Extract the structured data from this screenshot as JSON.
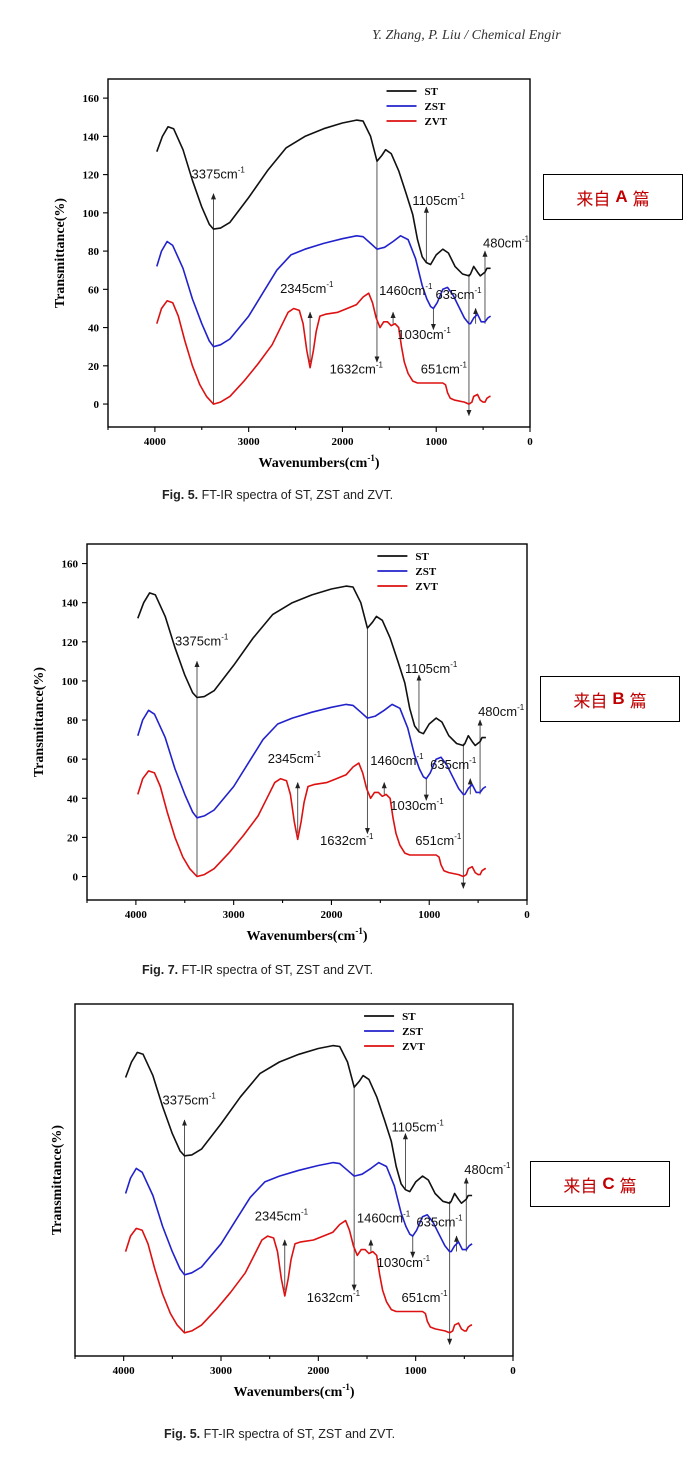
{
  "header": "Y. Zhang, P. Liu / Chemical Engir",
  "panels": [
    {
      "id": "A",
      "note": {
        "prefix": "来自",
        "letter": "A",
        "suffix": "篇"
      },
      "caption": {
        "fig": "Fig. 5.",
        "text": "FT-IR spectra of ST, ZST and ZVT."
      },
      "show_y_ticks": true
    },
    {
      "id": "B",
      "note": {
        "prefix": "来自",
        "letter": "B",
        "suffix": "篇"
      },
      "caption": {
        "fig": "Fig. 7.",
        "text": "FT-IR spectra of ST, ZST and ZVT."
      },
      "show_y_ticks": true
    },
    {
      "id": "C",
      "note": {
        "prefix": "来自",
        "letter": "C",
        "suffix": "篇"
      },
      "caption": {
        "fig": "Fig. 5.",
        "text": "FT-IR spectra of ST, ZST and ZVT."
      },
      "show_y_ticks": false
    }
  ],
  "chart_data": {
    "type": "line",
    "xlabel": "Wavenumbers(cm",
    "xlabel_sup": "-1",
    "xlabel_suffix": ")",
    "ylabel": "Transmittance(%)",
    "xlim": [
      4500,
      0
    ],
    "ylim": [
      -12,
      170
    ],
    "x_ticks": [
      4000,
      3000,
      2000,
      1000,
      0
    ],
    "y_ticks": [
      0,
      20,
      40,
      60,
      80,
      100,
      120,
      140,
      160
    ],
    "legend_position": "top-right",
    "series": [
      {
        "name": "ST",
        "color": "#111111",
        "points": [
          [
            3980,
            132
          ],
          [
            3920,
            140
          ],
          [
            3860,
            145
          ],
          [
            3800,
            144
          ],
          [
            3700,
            133
          ],
          [
            3600,
            117
          ],
          [
            3500,
            103
          ],
          [
            3420,
            94
          ],
          [
            3375,
            91.5
          ],
          [
            3300,
            92
          ],
          [
            3200,
            95
          ],
          [
            3000,
            108
          ],
          [
            2800,
            122
          ],
          [
            2600,
            134
          ],
          [
            2400,
            140
          ],
          [
            2200,
            144
          ],
          [
            2000,
            147
          ],
          [
            1850,
            148.5
          ],
          [
            1780,
            148
          ],
          [
            1700,
            140
          ],
          [
            1632,
            127
          ],
          [
            1580,
            130
          ],
          [
            1540,
            133
          ],
          [
            1480,
            131
          ],
          [
            1400,
            122
          ],
          [
            1320,
            110
          ],
          [
            1250,
            99
          ],
          [
            1200,
            86
          ],
          [
            1150,
            77
          ],
          [
            1105,
            74
          ],
          [
            1060,
            73
          ],
          [
            1000,
            78
          ],
          [
            930,
            81
          ],
          [
            870,
            79
          ],
          [
            800,
            72
          ],
          [
            720,
            68
          ],
          [
            651,
            67
          ],
          [
            635,
            68
          ],
          [
            600,
            72
          ],
          [
            560,
            69
          ],
          [
            530,
            67
          ],
          [
            480,
            69
          ],
          [
            460,
            71
          ],
          [
            420,
            71
          ]
        ]
      },
      {
        "name": "ZST",
        "color": "#2222cc",
        "points": [
          [
            3980,
            72
          ],
          [
            3930,
            80
          ],
          [
            3870,
            85
          ],
          [
            3810,
            83
          ],
          [
            3700,
            71
          ],
          [
            3600,
            55
          ],
          [
            3500,
            42
          ],
          [
            3420,
            33
          ],
          [
            3375,
            30
          ],
          [
            3300,
            31
          ],
          [
            3200,
            34
          ],
          [
            3000,
            46
          ],
          [
            2850,
            58
          ],
          [
            2700,
            70
          ],
          [
            2550,
            78
          ],
          [
            2400,
            81
          ],
          [
            2200,
            84
          ],
          [
            2000,
            86.5
          ],
          [
            1850,
            88
          ],
          [
            1780,
            87.5
          ],
          [
            1700,
            84
          ],
          [
            1632,
            81
          ],
          [
            1550,
            82
          ],
          [
            1460,
            85
          ],
          [
            1380,
            88
          ],
          [
            1300,
            86
          ],
          [
            1220,
            76
          ],
          [
            1150,
            62
          ],
          [
            1100,
            55
          ],
          [
            1060,
            51
          ],
          [
            1030,
            50
          ],
          [
            990,
            53
          ],
          [
            930,
            60
          ],
          [
            880,
            61
          ],
          [
            820,
            57
          ],
          [
            760,
            51
          ],
          [
            700,
            45
          ],
          [
            651,
            42
          ],
          [
            635,
            42
          ],
          [
            600,
            45
          ],
          [
            560,
            47
          ],
          [
            520,
            43
          ],
          [
            480,
            43
          ],
          [
            450,
            45
          ],
          [
            420,
            46
          ]
        ]
      },
      {
        "name": "ZVT",
        "color": "#dd1111",
        "points": [
          [
            3980,
            42
          ],
          [
            3930,
            50
          ],
          [
            3870,
            54
          ],
          [
            3810,
            53
          ],
          [
            3750,
            46
          ],
          [
            3680,
            33
          ],
          [
            3600,
            20
          ],
          [
            3520,
            10
          ],
          [
            3450,
            4
          ],
          [
            3375,
            0
          ],
          [
            3300,
            1
          ],
          [
            3200,
            4
          ],
          [
            3050,
            12
          ],
          [
            2900,
            21
          ],
          [
            2750,
            31
          ],
          [
            2650,
            41
          ],
          [
            2580,
            48
          ],
          [
            2520,
            50
          ],
          [
            2460,
            49
          ],
          [
            2420,
            42
          ],
          [
            2380,
            28
          ],
          [
            2345,
            19
          ],
          [
            2310,
            28
          ],
          [
            2280,
            38
          ],
          [
            2240,
            46
          ],
          [
            2180,
            47
          ],
          [
            2050,
            48
          ],
          [
            1950,
            50
          ],
          [
            1850,
            52
          ],
          [
            1780,
            56
          ],
          [
            1720,
            58
          ],
          [
            1680,
            53
          ],
          [
            1640,
            45
          ],
          [
            1600,
            40
          ],
          [
            1560,
            43
          ],
          [
            1520,
            43
          ],
          [
            1480,
            41
          ],
          [
            1440,
            42
          ],
          [
            1400,
            40
          ],
          [
            1370,
            30
          ],
          [
            1340,
            22
          ],
          [
            1300,
            16
          ],
          [
            1250,
            12
          ],
          [
            1200,
            11
          ],
          [
            1100,
            11
          ],
          [
            1000,
            11
          ],
          [
            930,
            11
          ],
          [
            900,
            10
          ],
          [
            880,
            6
          ],
          [
            850,
            3
          ],
          [
            800,
            2
          ],
          [
            700,
            1
          ],
          [
            651,
            0
          ],
          [
            620,
            1
          ],
          [
            600,
            4
          ],
          [
            560,
            5
          ],
          [
            530,
            2
          ],
          [
            500,
            1
          ],
          [
            480,
            1
          ],
          [
            460,
            3
          ],
          [
            430,
            4
          ],
          [
            420,
            4
          ]
        ]
      }
    ],
    "annotations": [
      {
        "label": "3375cm",
        "x": 3375,
        "arrow": "up",
        "from": 0,
        "to": 110
      },
      {
        "label": "2345cm",
        "x": 2345,
        "arrow": "up",
        "from": 22,
        "to": 48
      },
      {
        "label": "1632cm",
        "x": 1632,
        "arrow": "down",
        "from": 127,
        "to": 22
      },
      {
        "label": "1460cm",
        "x": 1460,
        "arrow": "up",
        "from": 42,
        "to": 48
      },
      {
        "label": "1105cm",
        "x": 1105,
        "arrow": "up",
        "from": 74,
        "to": 103
      },
      {
        "label": "1030cm",
        "x": 1030,
        "arrow": "down",
        "from": 50,
        "to": 39
      },
      {
        "label": "651cm",
        "x": 651,
        "arrow": "down",
        "from": 68,
        "to": -6
      },
      {
        "label": "635cm",
        "x": 580,
        "arrow": "up",
        "from": 42,
        "to": 50
      },
      {
        "label": "480cm",
        "x": 480,
        "arrow": "up",
        "from": 42,
        "to": 80
      }
    ],
    "annotation_sup": "-1"
  }
}
